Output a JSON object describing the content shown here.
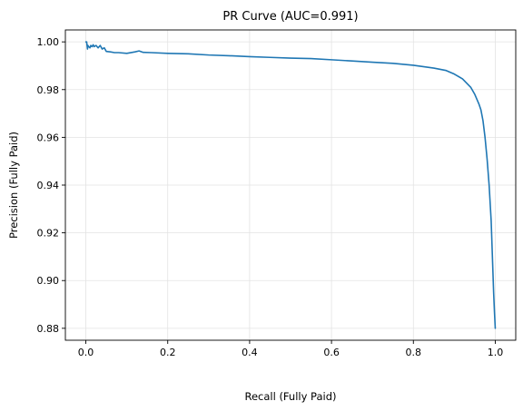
{
  "chart_data": {
    "type": "line",
    "title": "PR Curve (AUC=0.991)",
    "xlabel": "Recall (Fully Paid)",
    "ylabel": "Precision (Fully Paid)",
    "xlim": [
      -0.05,
      1.05
    ],
    "ylim": [
      0.875,
      1.005
    ],
    "xticks": [
      0.0,
      0.2,
      0.4,
      0.6,
      0.8,
      1.0
    ],
    "xtick_labels": [
      "0.0",
      "0.2",
      "0.4",
      "0.6",
      "0.8",
      "1.0"
    ],
    "yticks": [
      0.88,
      0.9,
      0.92,
      0.94,
      0.96,
      0.98,
      1.0
    ],
    "ytick_labels": [
      "0.88",
      "0.90",
      "0.92",
      "0.94",
      "0.96",
      "0.98",
      "1.00"
    ],
    "grid": true,
    "series": [
      {
        "color": "#1f77b4",
        "x": [
          0.0,
          0.002,
          0.004,
          0.005,
          0.007,
          0.01,
          0.012,
          0.015,
          0.018,
          0.02,
          0.025,
          0.03,
          0.035,
          0.04,
          0.045,
          0.05,
          0.06,
          0.07,
          0.08,
          0.1,
          0.12,
          0.13,
          0.14,
          0.16,
          0.2,
          0.25,
          0.3,
          0.35,
          0.4,
          0.45,
          0.5,
          0.55,
          0.6,
          0.65,
          0.7,
          0.75,
          0.8,
          0.85,
          0.88,
          0.9,
          0.92,
          0.94,
          0.95,
          0.96,
          0.965,
          0.97,
          0.975,
          0.98,
          0.985,
          0.99,
          0.992,
          0.994,
          0.996,
          0.998,
          1.0
        ],
        "y": [
          1.0,
          1.0,
          0.997,
          0.9985,
          0.998,
          0.9975,
          0.9985,
          0.998,
          0.9988,
          0.998,
          0.9985,
          0.9975,
          0.9985,
          0.997,
          0.9975,
          0.996,
          0.9958,
          0.9955,
          0.9955,
          0.9952,
          0.9958,
          0.9962,
          0.9956,
          0.9955,
          0.9952,
          0.995,
          0.9945,
          0.9942,
          0.9938,
          0.9935,
          0.9932,
          0.993,
          0.9925,
          0.992,
          0.9915,
          0.991,
          0.9902,
          0.989,
          0.988,
          0.9865,
          0.9845,
          0.981,
          0.978,
          0.974,
          0.9715,
          0.967,
          0.96,
          0.951,
          0.94,
          0.925,
          0.915,
          0.905,
          0.895,
          0.887,
          0.88
        ]
      }
    ]
  }
}
